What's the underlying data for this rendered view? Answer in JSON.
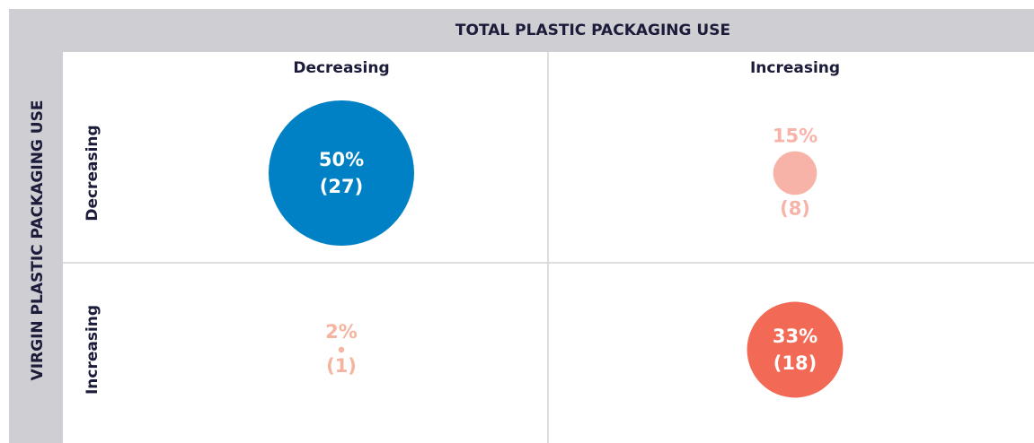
{
  "chart_data": {
    "type": "bubble-matrix",
    "x_title": "TOTAL PLASTIC PACKAGING USE",
    "y_title": "VIRGIN PLASTIC PACKAGING USE",
    "columns": [
      "Decreasing",
      "Increasing"
    ],
    "rows": [
      "Decreasing",
      "Increasing"
    ],
    "values": [
      [
        50,
        15
      ],
      [
        2,
        33
      ]
    ],
    "value_labels": [
      [
        "50%",
        "15%"
      ],
      [
        "2%",
        "33%"
      ]
    ],
    "counts": [
      [
        27,
        8
      ],
      [
        1,
        18
      ]
    ],
    "count_labels": [
      [
        "(27)",
        "(8)"
      ],
      [
        "(1)",
        "(18)"
      ]
    ],
    "colors": [
      [
        "#0081c6",
        "#f8b3a9"
      ],
      [
        "#f5b49f",
        "#f26a55"
      ]
    ]
  }
}
